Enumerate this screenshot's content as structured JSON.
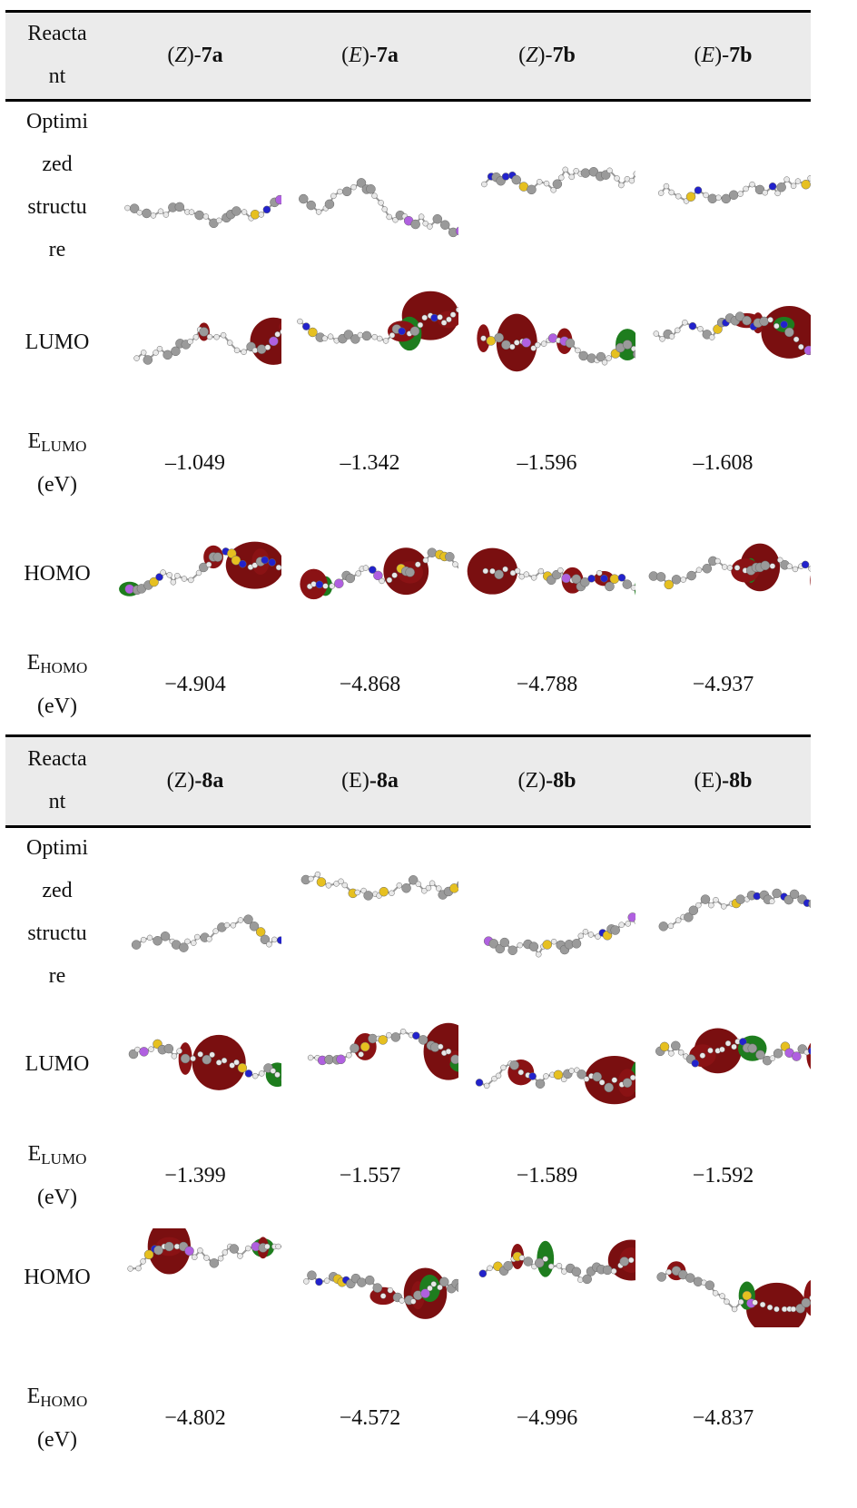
{
  "sections": [
    {
      "header": {
        "label": [
          [
            {
              "text": "Reacta"
            }
          ],
          [
            {
              "text": "nt"
            }
          ]
        ],
        "compounds": [
          [
            {
              "text": "("
            },
            {
              "text": "Z",
              "style": "italic"
            },
            {
              "text": ")-"
            },
            {
              "text": "7a",
              "style": "bold"
            }
          ],
          [
            {
              "text": "("
            },
            {
              "text": "E",
              "style": "italic"
            },
            {
              "text": ")-"
            },
            {
              "text": "7a",
              "style": "bold"
            }
          ],
          [
            {
              "text": "("
            },
            {
              "text": "Z",
              "style": "italic"
            },
            {
              "text": ")-"
            },
            {
              "text": "7b",
              "style": "bold"
            }
          ],
          [
            {
              "text": "("
            },
            {
              "text": "E",
              "style": "italic"
            },
            {
              "text": ")-"
            },
            {
              "text": "7b",
              "style": "bold"
            }
          ]
        ]
      },
      "rows": [
        {
          "label": [
            [
              {
                "text": "Optimi"
              }
            ],
            [
              {
                "text": "zed"
              }
            ],
            [
              {
                "text": "structu"
              }
            ],
            [
              {
                "text": "re"
              }
            ]
          ]
        },
        {
          "label": [
            [
              {
                "text": "LUMO"
              }
            ]
          ]
        },
        {
          "label": [
            [
              {
                "text": "E"
              },
              {
                "text": "LUMO",
                "style": "sub"
              }
            ],
            [
              {
                "text": "(eV)"
              }
            ]
          ],
          "values": [
            "–1.049",
            "–1.342",
            "–1.596",
            "–1.608"
          ]
        },
        {
          "label": [
            [
              {
                "text": "HOMO"
              }
            ]
          ]
        },
        {
          "label": [
            [
              {
                "text": "E"
              },
              {
                "text": "HOMO",
                "style": "sub"
              }
            ],
            [
              {
                "text": "(eV)"
              }
            ]
          ],
          "values": [
            "−4.904",
            "−4.868",
            "−4.788",
            "−4.937"
          ]
        }
      ]
    },
    {
      "header": {
        "label": [
          [
            {
              "text": "Reacta"
            }
          ],
          [
            {
              "text": "nt"
            }
          ]
        ],
        "compounds": [
          [
            {
              "text": "(Z)"
            },
            {
              "text": "-8a",
              "style": "bold"
            }
          ],
          [
            {
              "text": "(E)"
            },
            {
              "text": "-8a",
              "style": "bold"
            }
          ],
          [
            {
              "text": "(Z)"
            },
            {
              "text": "-8b",
              "style": "bold"
            }
          ],
          [
            {
              "text": "(E)"
            },
            {
              "text": "-8b",
              "style": "bold"
            }
          ]
        ]
      },
      "rows": [
        {
          "label": [
            [
              {
                "text": "Optimi"
              }
            ],
            [
              {
                "text": "zed"
              }
            ],
            [
              {
                "text": "structu"
              }
            ],
            [
              {
                "text": "re"
              }
            ]
          ]
        },
        {
          "label": [
            [
              {
                "text": "LUMO"
              }
            ]
          ]
        },
        {
          "label": [
            [
              {
                "text": "E"
              },
              {
                "text": "LUMO",
                "style": "sub"
              }
            ],
            [
              {
                "text": "(eV)"
              }
            ]
          ],
          "values": [
            "−1.399",
            "−1.557",
            "−1.589",
            "−1.592"
          ]
        },
        {
          "label": [
            [
              {
                "text": "HOMO"
              }
            ]
          ]
        },
        {
          "label": [
            [
              {
                "text": "E"
              },
              {
                "text": "HOMO",
                "style": "sub"
              }
            ],
            [
              {
                "text": "(eV)"
              }
            ]
          ],
          "values": [
            "−4.802",
            "−4.572",
            "−4.996",
            "−4.837"
          ]
        }
      ]
    }
  ]
}
